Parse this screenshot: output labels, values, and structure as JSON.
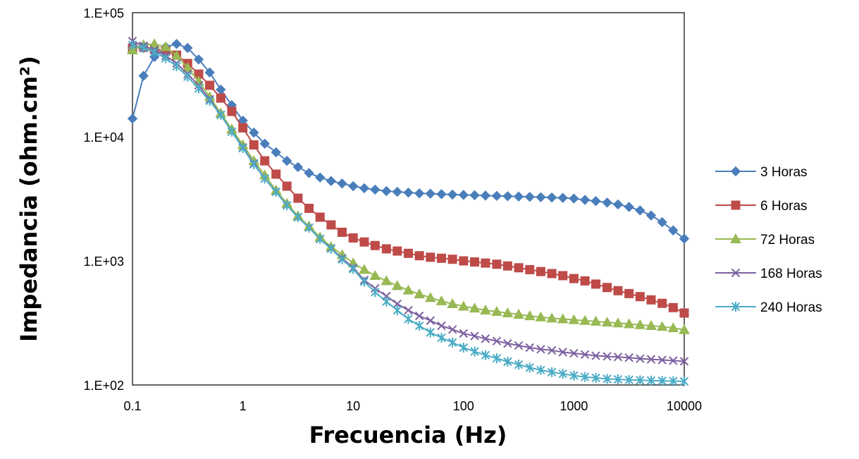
{
  "chart_data": {
    "type": "line",
    "title": "",
    "xlabel": "Frecuencia (Hz)",
    "ylabel": "Impedancia (ohm.cm²)",
    "x_scale": "log",
    "y_scale": "log",
    "xlim": [
      0.1,
      10000
    ],
    "ylim": [
      100,
      100000
    ],
    "x_ticks": [
      0.1,
      1,
      10,
      100,
      1000,
      10000
    ],
    "x_tick_labels": [
      "0.1",
      "1",
      "10",
      "100",
      "1000",
      "10000"
    ],
    "y_ticks": [
      100,
      1000,
      10000,
      100000
    ],
    "y_tick_labels": [
      "1.E+02",
      "1.E+03",
      "1.E+04",
      "1.E+05"
    ],
    "grid": false,
    "legend_position": "right",
    "series": [
      {
        "name": "3 Horas",
        "color": "#4a7ebb",
        "marker": "diamond",
        "x": [
          0.1,
          0.126,
          0.158,
          0.2,
          0.251,
          0.316,
          0.398,
          0.501,
          0.631,
          0.794,
          1,
          1.26,
          1.58,
          2,
          2.51,
          3.16,
          3.98,
          5.01,
          6.31,
          7.94,
          10,
          12.6,
          15.8,
          20,
          25.1,
          31.6,
          39.8,
          50.1,
          63.1,
          79.4,
          100,
          126,
          158,
          200,
          251,
          316,
          398,
          501,
          631,
          794,
          1000,
          1260,
          1580,
          2000,
          2510,
          3160,
          3980,
          5010,
          6310,
          7940,
          10000
        ],
        "y": [
          14000,
          31000,
          44000,
          53000,
          56000,
          52000,
          42000,
          33000,
          24000,
          18000,
          13500,
          10800,
          8800,
          7500,
          6400,
          5700,
          5100,
          4700,
          4400,
          4200,
          4000,
          3850,
          3750,
          3650,
          3600,
          3550,
          3500,
          3480,
          3450,
          3420,
          3400,
          3380,
          3360,
          3340,
          3320,
          3300,
          3280,
          3260,
          3240,
          3220,
          3180,
          3100,
          3030,
          2950,
          2850,
          2720,
          2550,
          2320,
          2050,
          1760,
          1510
        ]
      },
      {
        "name": "6 Horas",
        "color": "#be4b48",
        "marker": "square",
        "x": [
          0.1,
          0.126,
          0.158,
          0.2,
          0.251,
          0.316,
          0.398,
          0.501,
          0.631,
          0.794,
          1,
          1.26,
          1.58,
          2,
          2.51,
          3.16,
          3.98,
          5.01,
          6.31,
          7.94,
          10,
          12.6,
          15.8,
          20,
          25.1,
          31.6,
          39.8,
          50.1,
          63.1,
          79.4,
          100,
          126,
          158,
          200,
          251,
          316,
          398,
          501,
          631,
          794,
          1000,
          1260,
          1580,
          2000,
          2510,
          3160,
          3980,
          5010,
          6310,
          7940,
          10000
        ],
        "y": [
          52000,
          52500,
          51000,
          49000,
          45500,
          39000,
          32000,
          26000,
          20500,
          16000,
          11800,
          8600,
          6400,
          5000,
          4000,
          3200,
          2650,
          2250,
          1950,
          1700,
          1530,
          1420,
          1330,
          1250,
          1200,
          1150,
          1100,
          1070,
          1050,
          1030,
          1000,
          980,
          960,
          940,
          910,
          880,
          850,
          820,
          790,
          760,
          720,
          690,
          650,
          610,
          575,
          545,
          515,
          485,
          455,
          420,
          380
        ]
      },
      {
        "name": "72 Horas",
        "color": "#98b954",
        "marker": "triangle",
        "x": [
          0.1,
          0.126,
          0.158,
          0.2,
          0.251,
          0.316,
          0.398,
          0.501,
          0.631,
          0.794,
          1,
          1.26,
          1.58,
          2,
          2.51,
          3.16,
          3.98,
          5.01,
          6.31,
          7.94,
          10,
          12.6,
          15.8,
          20,
          25.1,
          31.6,
          39.8,
          50.1,
          63.1,
          79.4,
          100,
          126,
          158,
          200,
          251,
          316,
          398,
          501,
          631,
          794,
          1000,
          1260,
          1580,
          2000,
          2510,
          3160,
          3980,
          5010,
          6310,
          7940,
          10000
        ],
        "y": [
          50000,
          55000,
          56000,
          53000,
          45000,
          36000,
          28000,
          21000,
          15500,
          11500,
          8600,
          6400,
          4900,
          3700,
          2900,
          2300,
          1900,
          1550,
          1300,
          1120,
          960,
          850,
          760,
          690,
          630,
          580,
          540,
          505,
          475,
          450,
          430,
          415,
          400,
          390,
          380,
          370,
          360,
          352,
          345,
          340,
          335,
          330,
          325,
          320,
          315,
          310,
          305,
          300,
          295,
          288,
          278
        ]
      },
      {
        "name": "168 Horas",
        "color": "#7d60a0",
        "marker": "x",
        "x": [
          0.1,
          0.126,
          0.158,
          0.2,
          0.251,
          0.316,
          0.398,
          0.501,
          0.631,
          0.794,
          1,
          1.26,
          1.58,
          2,
          2.51,
          3.16,
          3.98,
          5.01,
          6.31,
          7.94,
          10,
          12.6,
          15.8,
          20,
          25.1,
          31.6,
          39.8,
          50.1,
          63.1,
          79.4,
          100,
          126,
          158,
          200,
          251,
          316,
          398,
          501,
          631,
          794,
          1000,
          1260,
          1580,
          2000,
          2510,
          3160,
          3980,
          5010,
          6310,
          7940,
          10000
        ],
        "y": [
          59000,
          54000,
          50000,
          45000,
          39000,
          32000,
          26000,
          20000,
          15000,
          11000,
          8200,
          6100,
          4600,
          3600,
          2800,
          2250,
          1850,
          1500,
          1260,
          1050,
          880,
          700,
          600,
          520,
          450,
          400,
          360,
          330,
          300,
          280,
          260,
          248,
          236,
          226,
          216,
          208,
          200,
          194,
          190,
          184,
          180,
          176,
          172,
          170,
          168,
          166,
          163,
          161,
          159,
          157,
          155
        ]
      },
      {
        "name": "240 Horas",
        "color": "#4bacc6",
        "marker": "asterisk",
        "x": [
          0.1,
          0.126,
          0.158,
          0.2,
          0.251,
          0.316,
          0.398,
          0.501,
          0.631,
          0.794,
          1,
          1.26,
          1.58,
          2,
          2.51,
          3.16,
          3.98,
          5.01,
          6.31,
          7.94,
          10,
          12.6,
          15.8,
          20,
          25.1,
          31.6,
          39.8,
          50.1,
          63.1,
          79.4,
          100,
          126,
          158,
          200,
          251,
          316,
          398,
          501,
          631,
          794,
          1000,
          1260,
          1580,
          2000,
          2510,
          3160,
          3980,
          5010,
          6310,
          7940,
          10000
        ],
        "y": [
          55000,
          52000,
          48000,
          43000,
          37000,
          30500,
          24500,
          19500,
          15000,
          11000,
          8100,
          6000,
          4600,
          3600,
          2800,
          2250,
          1850,
          1500,
          1250,
          1030,
          860,
          680,
          560,
          470,
          400,
          340,
          300,
          265,
          240,
          220,
          200,
          186,
          174,
          164,
          154,
          146,
          138,
          132,
          127,
          123,
          119,
          116,
          114,
          112,
          111,
          110,
          109,
          108.5,
          108,
          107.5,
          107
        ]
      }
    ]
  }
}
